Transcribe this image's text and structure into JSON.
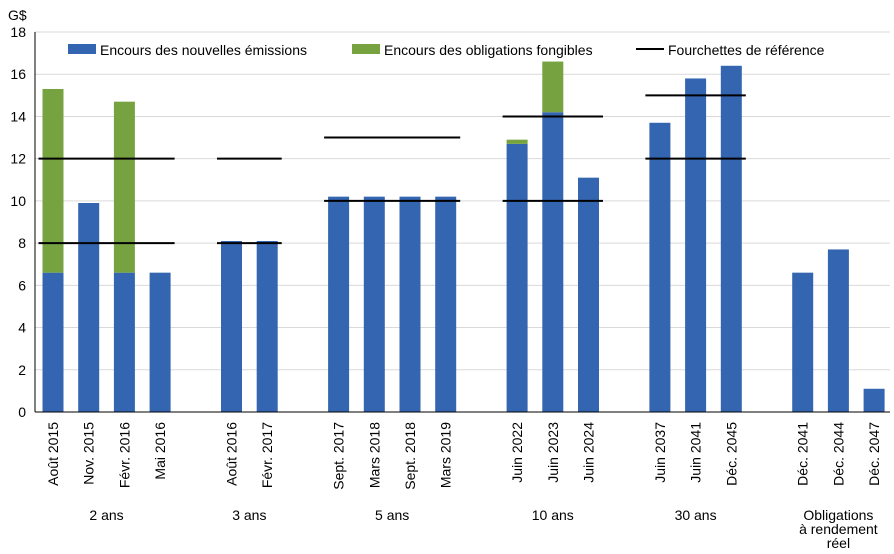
{
  "chart_data": {
    "type": "bar",
    "stacked": true,
    "unit_label": "G$",
    "ylim": [
      0,
      18
    ],
    "yticks": [
      0,
      2,
      4,
      6,
      8,
      10,
      12,
      14,
      16,
      18
    ],
    "grid": true,
    "legend_position": "top",
    "legend": [
      {
        "name": "Encours des nouvelles émissions",
        "kind": "bar",
        "color": "#3465b0"
      },
      {
        "name": "Encours des obligations fongibles",
        "kind": "bar",
        "color": "#76a340"
      },
      {
        "name": "Fourchettes de référence",
        "kind": "line",
        "color": "#000000"
      }
    ],
    "colors": {
      "new": "#3465b0",
      "fungible": "#76a340",
      "range": "#000000",
      "grid": "#d9d9d9"
    },
    "groups": [
      {
        "label": [
          "2 ans"
        ],
        "categories": [
          "Août 2015",
          "Nov. 2015",
          "Févr. 2016",
          "Mai 2016"
        ],
        "new_issues": [
          6.6,
          9.9,
          6.6,
          6.6
        ],
        "fungible": [
          8.7,
          0,
          8.1,
          0
        ],
        "range": [
          8,
          12
        ]
      },
      {
        "label": [
          "3 ans"
        ],
        "categories": [
          "Août 2016",
          "Févr. 2017"
        ],
        "new_issues": [
          8.1,
          8.1
        ],
        "fungible": [
          0,
          0
        ],
        "range": [
          8,
          12
        ]
      },
      {
        "label": [
          "5 ans"
        ],
        "categories": [
          "Sept. 2017",
          "Mars 2018",
          "Sept. 2018",
          "Mars 2019"
        ],
        "new_issues": [
          10.2,
          10.2,
          10.2,
          10.2
        ],
        "fungible": [
          0,
          0,
          0,
          0
        ],
        "range": [
          10,
          13
        ]
      },
      {
        "label": [
          "10 ans"
        ],
        "categories": [
          "Juin 2022",
          "Juin 2023",
          "Juin 2024"
        ],
        "new_issues": [
          12.7,
          14.2,
          11.1
        ],
        "fungible": [
          0.2,
          2.4,
          0
        ],
        "range": [
          10,
          14
        ]
      },
      {
        "label": [
          "30 ans"
        ],
        "categories": [
          "Juin 2037",
          "Juin 2041",
          "Déc. 2045"
        ],
        "new_issues": [
          13.7,
          15.8,
          16.4
        ],
        "fungible": [
          0,
          0,
          0
        ],
        "range": [
          12,
          15
        ]
      },
      {
        "label": [
          "Obligations",
          "à rendement",
          "réel"
        ],
        "categories": [
          "Déc. 2041",
          "Déc. 2044",
          "Déc. 2047"
        ],
        "new_issues": [
          6.6,
          7.7,
          1.1
        ],
        "fungible": [
          0,
          0,
          0
        ],
        "range": null
      }
    ]
  }
}
